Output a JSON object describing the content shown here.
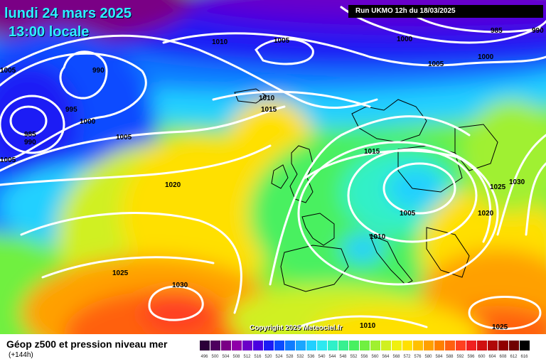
{
  "header": {
    "date": "lundi 24 mars 2025",
    "local_time": "13:00 locale",
    "run_info": "Run UKMO 12h du 18/03/2025"
  },
  "copyright": "Copyright 2025 Meteociel.fr",
  "legend": {
    "title": "Géop z500 et pression niveau mer",
    "subtitle": "(+144h)",
    "scale_labels": [
      "496",
      "500",
      "504",
      "508",
      "512",
      "516",
      "520",
      "524",
      "528",
      "532",
      "536",
      "540",
      "544",
      "548",
      "552",
      "556",
      "560",
      "564",
      "568",
      "572",
      "576",
      "580",
      "584",
      "588",
      "592",
      "596",
      "600",
      "604",
      "608",
      "612",
      "616"
    ],
    "scale_colors": [
      "#2b0038",
      "#4d005e",
      "#7a0085",
      "#8f00a8",
      "#6b00c8",
      "#4a00e0",
      "#1c1cf5",
      "#0b4cff",
      "#0f7cff",
      "#1aa6ff",
      "#22d0ff",
      "#2ee8f0",
      "#30f0c8",
      "#38f090",
      "#48f060",
      "#70f040",
      "#a0f030",
      "#d0f020",
      "#f0f010",
      "#ffe000",
      "#ffc000",
      "#ffa000",
      "#ff8000",
      "#ff6010",
      "#ff4020",
      "#f02020",
      "#d01010",
      "#b00808",
      "#900000",
      "#700000",
      "#000000"
    ]
  },
  "isobar_labels": [
    "1010",
    "1005",
    "1000",
    "985",
    "990",
    "1005",
    "1000",
    "1005",
    "990",
    "995",
    "985",
    "990",
    "1000",
    "1005",
    "1010",
    "1015",
    "1005",
    "1015",
    "1020",
    "1005",
    "1030",
    "1025",
    "1020",
    "1010",
    "1025",
    "1030",
    "1010",
    "1025"
  ]
}
